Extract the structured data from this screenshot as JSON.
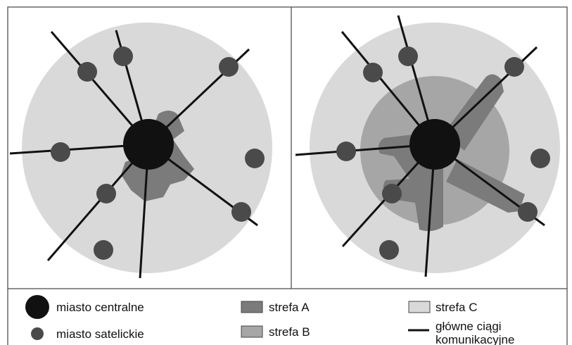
{
  "colors": {
    "central_city": "#111111",
    "satellite_city": "#4a4a4a",
    "zone_a": "#7b7b7b",
    "zone_b": "#a6a6a6",
    "zone_c": "#d9d9d9",
    "roads": "#111111",
    "frame": "#444444"
  },
  "panels": [
    {
      "label": "",
      "zones": [
        "strefa A",
        "strefa C"
      ]
    },
    {
      "label": "",
      "zones": [
        "strefa A",
        "strefa B",
        "strefa C"
      ]
    }
  ],
  "legend": {
    "central_city": "miasto centralne",
    "satellite_city": "miasto satelickie",
    "zone_a": "strefa A",
    "zone_b": "strefa B",
    "zone_c": "strefa C",
    "roads_line1": "główne ciągi",
    "roads_line2": "komunikacyjne"
  }
}
